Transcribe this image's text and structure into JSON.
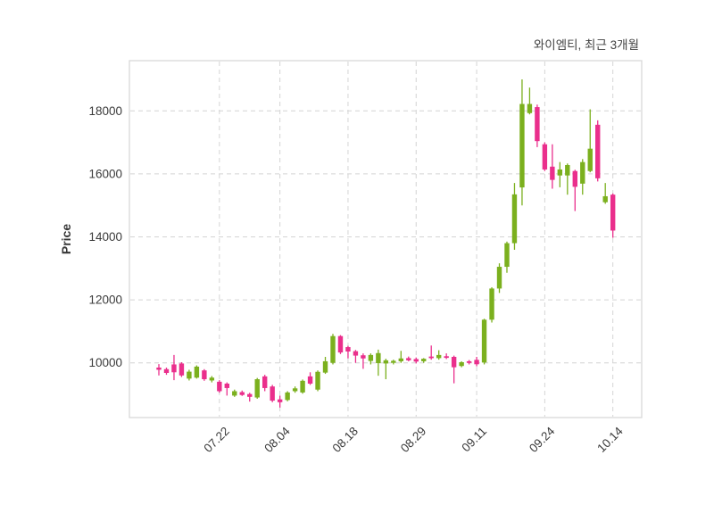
{
  "title": "와이엠티, 최근 3개월",
  "ylabel": "Price",
  "colors": {
    "up": "#7BB01E",
    "down": "#EA2F8C",
    "grid": "#d4d4d4",
    "spine": "#d9d9d9",
    "tick_text": "#3a3a3a",
    "title_text": "#424242",
    "background": "#ffffff"
  },
  "chart_data": {
    "type": "candlestick",
    "title": "와이엠티, 최근 3개월",
    "series_name": "와이엠티",
    "period_label": "최근 3개월",
    "xlabel": "",
    "ylabel": "Price",
    "grid": "dashed",
    "legend": "none",
    "y_ticks": [
      10000,
      12000,
      14000,
      16000,
      18000
    ],
    "ylim": [
      8260,
      19600
    ],
    "x_tick_labels": [
      "07.22",
      "08.04",
      "08.18",
      "08.29",
      "09.11",
      "09.24",
      "10.14"
    ],
    "x_tick_indices": [
      8,
      16,
      25,
      34,
      42,
      51,
      60
    ],
    "ohlc": [
      [
        9850,
        9960,
        9600,
        9780
      ],
      [
        9800,
        9850,
        9620,
        9680
      ],
      [
        9950,
        10250,
        9450,
        9700
      ],
      [
        9980,
        10020,
        9550,
        9600
      ],
      [
        9500,
        9780,
        9440,
        9720
      ],
      [
        9530,
        9920,
        9500,
        9880
      ],
      [
        9760,
        9800,
        9430,
        9480
      ],
      [
        9440,
        9580,
        9380,
        9530
      ],
      [
        9400,
        9450,
        9050,
        9100
      ],
      [
        9340,
        9380,
        8960,
        9200
      ],
      [
        8960,
        9150,
        8920,
        9100
      ],
      [
        9070,
        9120,
        8950,
        8980
      ],
      [
        9010,
        9050,
        8770,
        8920
      ],
      [
        8900,
        9520,
        8860,
        9480
      ],
      [
        9570,
        9620,
        9100,
        9200
      ],
      [
        9250,
        9300,
        8750,
        8800
      ],
      [
        8840,
        8960,
        8580,
        8750
      ],
      [
        8820,
        9100,
        8780,
        9060
      ],
      [
        9100,
        9250,
        9050,
        9190
      ],
      [
        9060,
        9470,
        9020,
        9430
      ],
      [
        9570,
        9700,
        9300,
        9340
      ],
      [
        9150,
        9760,
        9100,
        9715
      ],
      [
        9690,
        10190,
        9650,
        10050
      ],
      [
        10000,
        10920,
        9950,
        10850
      ],
      [
        10850,
        10880,
        10280,
        10330
      ],
      [
        10500,
        10540,
        10140,
        10360
      ],
      [
        10370,
        10410,
        10000,
        10230
      ],
      [
        10240,
        10300,
        9810,
        10140
      ],
      [
        10060,
        10300,
        9950,
        10250
      ],
      [
        9990,
        10420,
        9590,
        10310
      ],
      [
        9980,
        10130,
        9480,
        10080
      ],
      [
        10000,
        10100,
        9950,
        10065
      ],
      [
        10050,
        10380,
        10000,
        10140
      ],
      [
        10150,
        10200,
        10050,
        10080
      ],
      [
        10120,
        10170,
        9980,
        10040
      ],
      [
        10050,
        10150,
        10000,
        10130
      ],
      [
        10200,
        10550,
        10100,
        10150
      ],
      [
        10150,
        10400,
        10100,
        10250
      ],
      [
        10210,
        10300,
        10120,
        10160
      ],
      [
        10190,
        10230,
        9350,
        9860
      ],
      [
        9900,
        10050,
        9860,
        10020
      ],
      [
        10050,
        10090,
        9950,
        10000
      ],
      [
        10095,
        10190,
        9890,
        9955
      ],
      [
        10010,
        11400,
        9950,
        11370
      ],
      [
        11370,
        12400,
        11280,
        12360
      ],
      [
        12360,
        13160,
        12220,
        13050
      ],
      [
        13050,
        13850,
        12860,
        13800
      ],
      [
        13800,
        15710,
        13590,
        15350
      ],
      [
        15570,
        19000,
        15000,
        18220
      ],
      [
        17930,
        18740,
        17890,
        18220
      ],
      [
        18120,
        18200,
        16850,
        17040
      ],
      [
        16940,
        17000,
        16090,
        16140
      ],
      [
        16230,
        16940,
        15530,
        15810
      ],
      [
        15950,
        16375,
        15575,
        16140
      ],
      [
        15950,
        16330,
        15340,
        16280
      ],
      [
        16090,
        16130,
        14820,
        15590
      ],
      [
        15690,
        16470,
        15340,
        16375
      ],
      [
        16090,
        18050,
        16050,
        16800
      ],
      [
        17560,
        17700,
        15760,
        15860
      ],
      [
        15100,
        15710,
        15050,
        15290
      ],
      [
        15340,
        15380,
        13970,
        14200
      ]
    ]
  }
}
